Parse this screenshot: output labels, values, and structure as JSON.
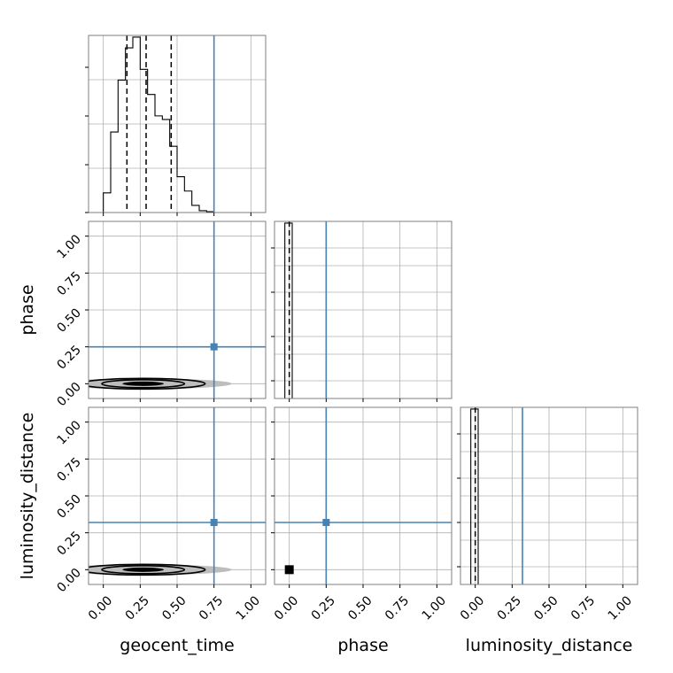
{
  "chart_data": {
    "type": "corner",
    "parameters": [
      "geocent_time",
      "phase",
      "luminosity_distance"
    ],
    "axis_labels": {
      "x": [
        "geocent_time",
        "phase",
        "luminosity_distance"
      ],
      "y": [
        "phase",
        "luminosity_distance"
      ]
    },
    "range": [
      -0.1,
      1.1
    ],
    "ticks": [
      0.0,
      0.25,
      0.5,
      0.75,
      1.0
    ],
    "tick_labels": [
      "0.00",
      "0.25",
      "0.50",
      "0.75",
      "1.00"
    ],
    "grid": true,
    "truths": {
      "geocent_time": 0.75,
      "phase": 0.25,
      "luminosity_distance": 0.32
    },
    "truth_color": "#4682b4",
    "histograms": [
      {
        "parameter": "geocent_time",
        "bin_edges": [
          0.0,
          0.05,
          0.1,
          0.15,
          0.2,
          0.25,
          0.3,
          0.35,
          0.4,
          0.45,
          0.5,
          0.55,
          0.6,
          0.65,
          0.7,
          0.75,
          0.8,
          0.85
        ],
        "counts": [
          11,
          45,
          74,
          92,
          98,
          80,
          66,
          54,
          52,
          37,
          20,
          12,
          4,
          1,
          0.5,
          0,
          0
        ],
        "quantiles": [
          0.16,
          0.29,
          0.46
        ]
      },
      {
        "parameter": "phase",
        "bin_edges": [
          -0.03,
          0.02
        ],
        "counts": [
          1
        ],
        "quantiles": [
          0.0
        ]
      },
      {
        "parameter": "luminosity_distance",
        "bin_edges": [
          -0.03,
          0.02
        ],
        "counts": [
          1
        ],
        "quantiles": [
          0.0
        ]
      }
    ],
    "contours_2d": [
      {
        "x": "geocent_time",
        "y": "phase",
        "center": [
          0.27,
          0.0
        ],
        "x_extent": [
          0.0,
          0.82
        ]
      },
      {
        "x": "geocent_time",
        "y": "luminosity_distance",
        "center": [
          0.27,
          0.0
        ],
        "x_extent": [
          0.0,
          0.82
        ]
      },
      {
        "x": "phase",
        "y": "luminosity_distance",
        "center": [
          0.0,
          0.0
        ],
        "x_extent": [
          -0.02,
          0.02
        ]
      }
    ]
  }
}
